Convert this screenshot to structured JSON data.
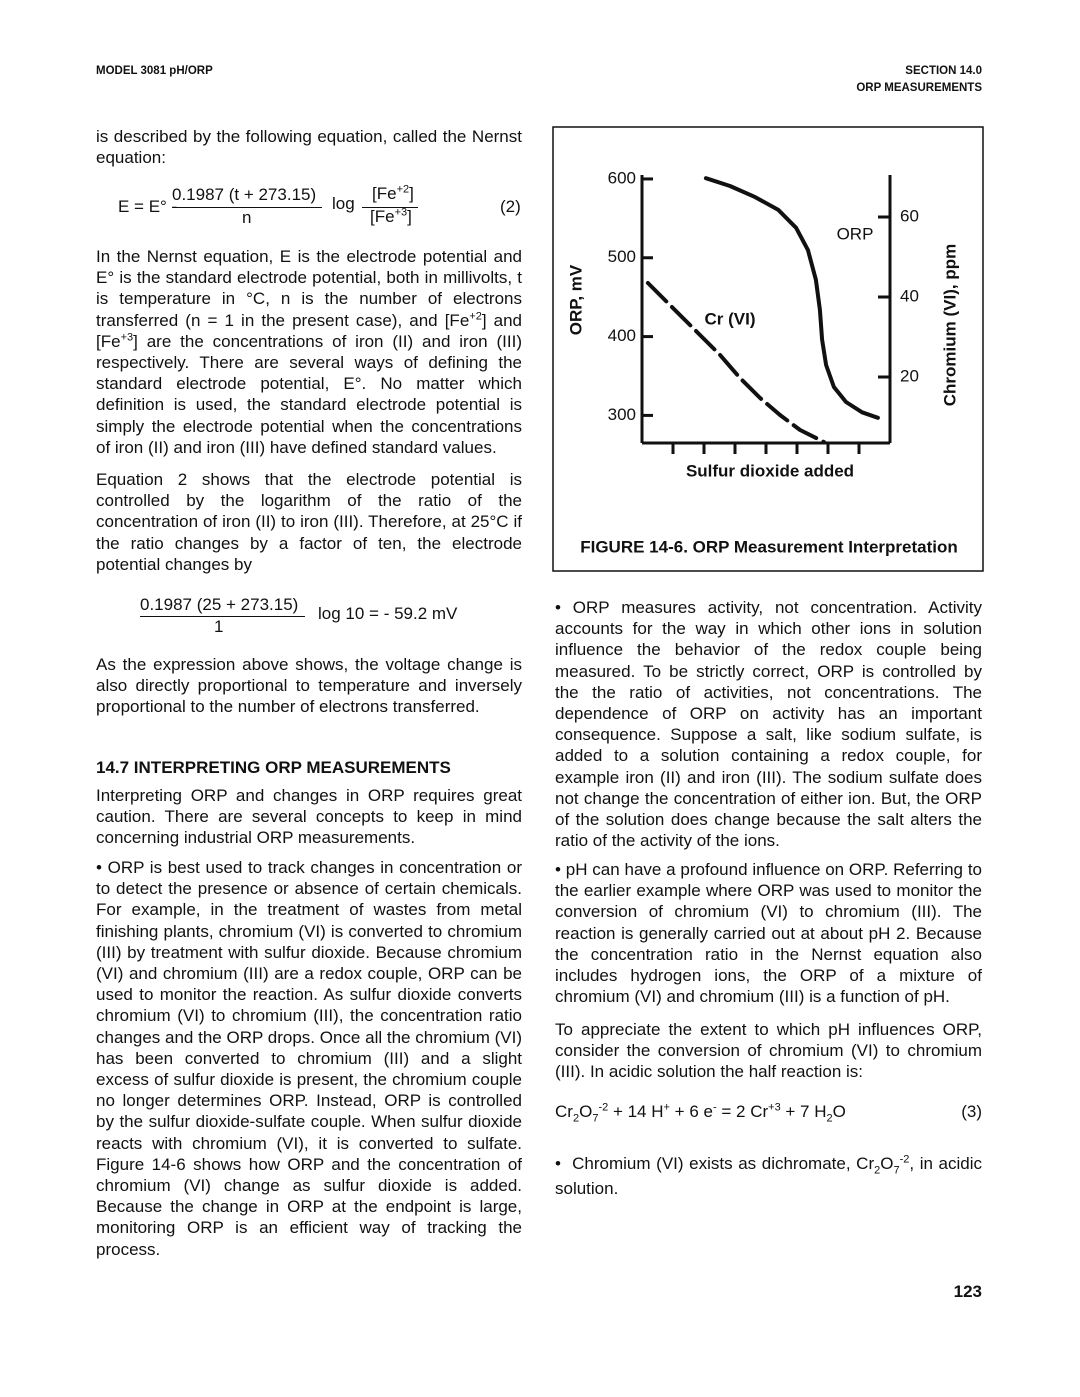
{
  "header": {
    "left": "MODEL 3081 pH/ORP",
    "right_line1": "SECTION 14.0",
    "right_line2": "ORP MEASUREMENTS"
  },
  "left": {
    "p1": "is described by the following equation, called the Nernst equation:",
    "eq2": {
      "lhs": "E = E° -",
      "num": "0.1987 (t + 273.15)",
      "den": "n",
      "log": "log",
      "fe_num": [
        "[Fe",
        "+2",
        "]"
      ],
      "fe_den": [
        "[Fe",
        "+3",
        "]"
      ],
      "number": "(2)"
    },
    "p2": [
      "In the Nernst equation, E is the electrode potential and E° is the standard electrode potential, both in millivolts, t is temperature in °C, n is the number of electrons transferred (n = 1 in the present case), and [Fe",
      "+2",
      "] and [Fe",
      "+3",
      "] are the concentrations of iron (II) and iron (III) respectively. There are several ways of defining the standard electrode potential, E°. No matter which definition is used, the standard electrode potential is simply the electrode potential when the concentrations of iron (II) and iron (III) have defined standard values."
    ],
    "p3": "Equation 2 shows that the electrode potential is controlled by the logarithm of the ratio of the concentration of iron (II) to iron (III). Therefore, at 25°C if the ratio changes by a factor of ten, the electrode potential changes by",
    "eq_calc": {
      "num": "0.1987 (25 + 273.15)",
      "den": "1",
      "rhs": "log 10 = - 59.2 mV"
    },
    "p4": "As the expression above shows, the voltage change is also directly proportional to temperature and inversely proportional to the number of electrons transferred.",
    "heading": "14.7 INTERPRETING ORP MEASUREMENTS",
    "p5": "Interpreting ORP and changes in ORP requires great caution. There are several concepts to keep in mind concerning industrial ORP measurements.",
    "bullet1": "• ORP is best used to track changes in concentration or to detect the presence or absence of certain chemicals. For example, in the treatment of wastes from metal finishing plants, chromium (VI) is converted to chromium (III) by treatment with sulfur dioxide. Because chromium (VI) and chromium (III) are a redox couple, ORP can be used to monitor the reaction. As sulfur dioxide converts chromium (VI) to chromium (III), the concentration ratio changes and the ORP drops. Once all the chromium (VI) has been converted to chromium (III) and a slight excess of sulfur dioxide is present, the chromium couple no longer determines ORP. Instead, ORP is controlled by the sulfur dioxide-sulfate couple. When sulfur dioxide reacts with chromium (VI), it is converted to sulfate. Figure 14-6 shows how ORP and the concentration of chromium (VI) change as sulfur dioxide is added. Because the change in ORP at the endpoint is large, monitoring ORP is an efficient way of tracking the process."
  },
  "right": {
    "bullet2": "• ORP measures activity, not concentration. Activity accounts for the way in which other ions in solution influence the behavior of the redox couple being measured. To be strictly correct, ORP is controlled by the the ratio of activities, not concentrations. The dependence of ORP on activity has an important consequence. Suppose a salt, like sodium sulfate, is added to a solution containing a redox couple, for example iron (II) and iron (III). The sodium sulfate does not change the concentration of either ion. But, the ORP of the solution does change because the salt alters the ratio of the activity of the ions.",
    "bullet3": "• pH can have a profound influence on ORP. Referring to the earlier example where ORP was used to monitor the conversion of chromium (VI) to chromium (III). The reaction is generally carried out at about pH 2. Because the concentration ratio in the Nernst equation also includes hydrogen ions, the ORP of a mixture of chromium (VI) and chromium (III) is a function of pH.",
    "p6": "To appreciate the extent to which pH influences ORP, consider the conversion of chromium (VI) to chromium (III). In acidic solution the half reaction is:",
    "eq3": {
      "parts": [
        "Cr",
        "2",
        "O",
        "7",
        "-2",
        " + 14 H",
        "+",
        " + 6 e",
        "-",
        " = 2 Cr",
        "+3",
        " + 7 H",
        "2",
        "O"
      ],
      "number": "(3)"
    },
    "bullet4": [
      "•  Chromium (VI) exists as dichromate, Cr",
      "2",
      "O",
      "7",
      "-2",
      ", in acidic solution."
    ]
  },
  "page_number": "123",
  "chart_data": {
    "type": "line",
    "caption": "FIGURE 14-6. ORP Measurement Interpretation",
    "x_label": "Sulfur dioxide added",
    "y_label": "ORP, mV",
    "y2_label": "Chromium (VI), ppm",
    "xlim": [
      0,
      8
    ],
    "xticks": [
      1,
      2,
      3,
      4,
      5,
      6,
      7
    ],
    "ylim": [
      265,
      605
    ],
    "yticks": [
      300,
      400,
      500,
      600
    ],
    "y2lim": [
      3.5,
      70.5
    ],
    "y2ticks": [
      20,
      40,
      60
    ],
    "series": [
      {
        "name": "ORP",
        "color": "#111111",
        "line_style": "solid",
        "x": [
          2.06,
          2.84,
          3.65,
          4.39,
          4.97,
          5.35,
          5.61,
          5.74,
          5.81,
          5.94,
          6.19,
          6.58,
          7.1,
          7.61
        ],
        "values": [
          601,
          591,
          577,
          561,
          538,
          510,
          472,
          434,
          396,
          364,
          336,
          317,
          304,
          297
        ]
      },
      {
        "name": "Cr (VI)",
        "color": "#111111",
        "line_style": "dashed",
        "axis": "y2",
        "x": [
          0.19,
          0.9,
          1.87,
          2.52,
          3.16,
          3.81,
          4.45,
          5.1,
          5.87
        ],
        "values": [
          43.5,
          38,
          30.5,
          25.5,
          19.75,
          14.75,
          10.5,
          6.75,
          3.75
        ]
      }
    ]
  }
}
